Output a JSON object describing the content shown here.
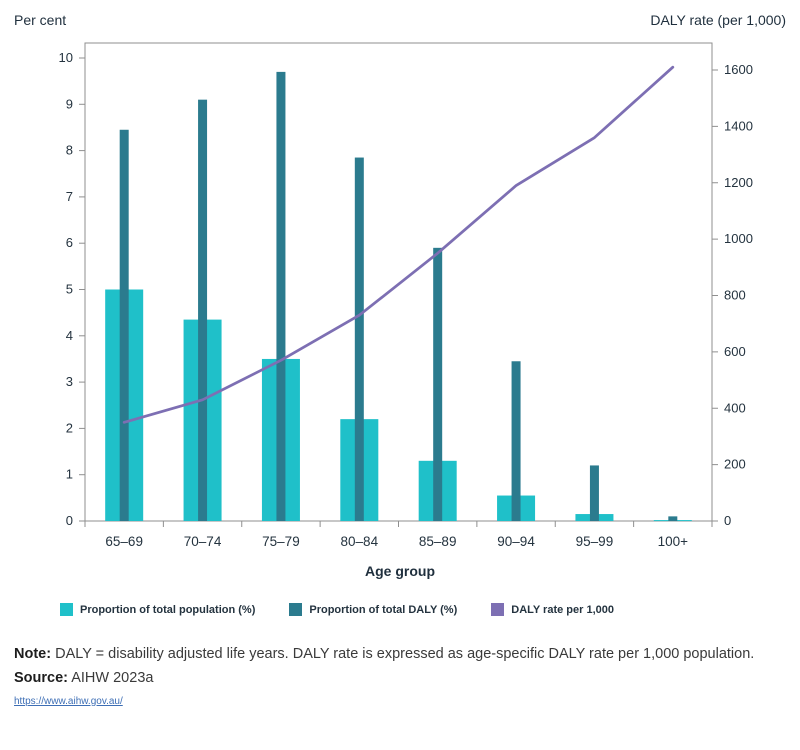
{
  "chart_data": {
    "type": "combo-bar-line",
    "left_axis_title": "Per cent",
    "right_axis_title": "DALY rate (per 1,000)",
    "xlabel": "Age group",
    "categories": [
      "65–69",
      "70–74",
      "75–79",
      "80–84",
      "85–89",
      "90–94",
      "95–99",
      "100+"
    ],
    "left_axis": {
      "min": 0,
      "max": 10,
      "ticks": [
        0,
        1,
        2,
        3,
        4,
        5,
        6,
        7,
        8,
        9,
        10
      ]
    },
    "right_axis": {
      "min": 0,
      "max": 1600,
      "ticks": [
        0,
        200,
        400,
        600,
        800,
        1000,
        1200,
        1400,
        1600
      ]
    },
    "grid": false,
    "legend_position": "bottom",
    "series": [
      {
        "name": "Proportion of total population (%)",
        "type": "bar",
        "axis": "left",
        "color": "#1fc0c9",
        "values": [
          5.0,
          4.35,
          3.5,
          2.2,
          1.3,
          0.55,
          0.15,
          0.02
        ]
      },
      {
        "name": "Proportion of total DALY (%)",
        "type": "bar",
        "axis": "left",
        "color": "#2b7b8e",
        "values": [
          8.45,
          9.1,
          9.7,
          7.85,
          5.9,
          3.45,
          1.2,
          0.1
        ]
      },
      {
        "name": "DALY rate per 1,000",
        "type": "line",
        "axis": "right",
        "color": "#7d6fb3",
        "values": [
          350,
          430,
          570,
          730,
          950,
          1190,
          1360,
          1610
        ]
      }
    ]
  },
  "notes": {
    "note_label": "Note:",
    "note_text": "DALY = disability adjusted life years. DALY rate is expressed as age-specific DALY rate per 1,000 population.",
    "source_label": "Source:",
    "source_text": "AIHW 2023a",
    "link": "https://www.aihw.gov.au/"
  }
}
